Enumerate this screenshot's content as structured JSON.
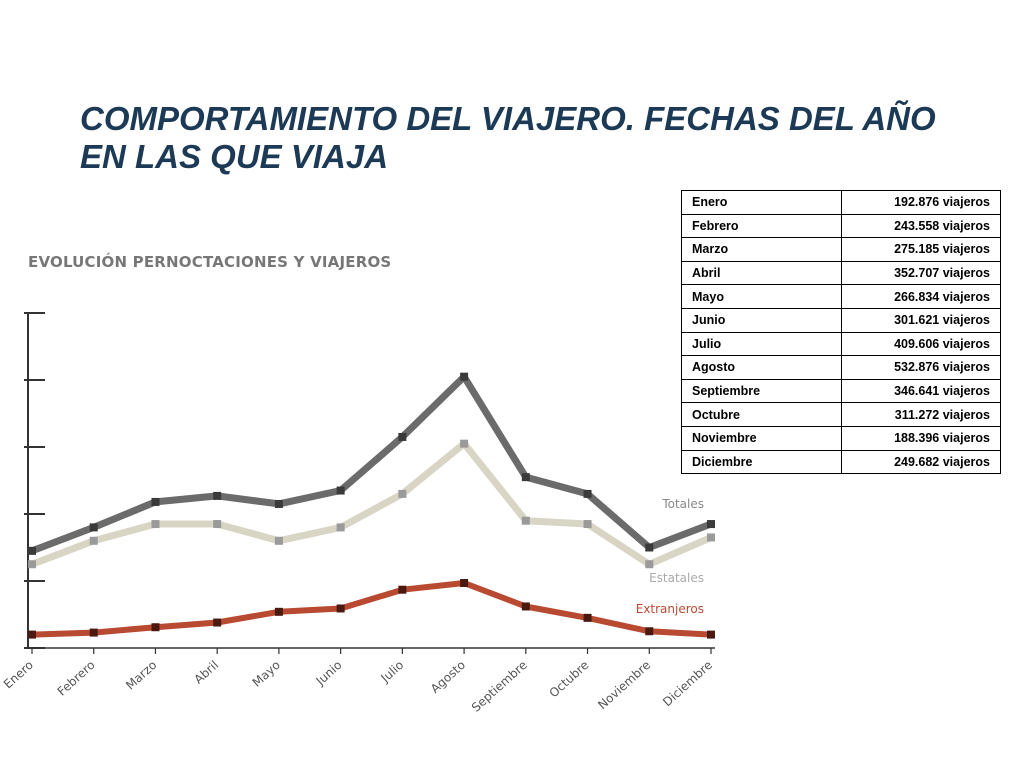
{
  "slide": {
    "title_line1": "COMPORTAMIENTO DEL VIAJERO. FECHAS DEL AÑO",
    "title_line2": "EN LAS QUE VIAJA"
  },
  "table": {
    "rows": [
      {
        "month": "Enero",
        "value": "192.876 viajeros"
      },
      {
        "month": "Febrero",
        "value": "243.558 viajeros"
      },
      {
        "month": "Marzo",
        "value": "275.185 viajeros"
      },
      {
        "month": "Abril",
        "value": "352.707 viajeros"
      },
      {
        "month": "Mayo",
        "value": "266.834 viajeros"
      },
      {
        "month": "Junio",
        "value": "301.621 viajeros"
      },
      {
        "month": "Julio",
        "value": "409.606 viajeros"
      },
      {
        "month": "Agosto",
        "value": "532.876 viajeros"
      },
      {
        "month": "Septiembre",
        "value": "346.641 viajeros"
      },
      {
        "month": "Octubre",
        "value": "311.272 viajeros"
      },
      {
        "month": "Noviembre",
        "value": "188.396 viajeros"
      },
      {
        "month": "Diciembre",
        "value": "249.682 viajeros"
      }
    ]
  },
  "colors": {
    "totales": "#6b6b6b",
    "estatales": "#d8d5c4",
    "extranjeros": "#b84a32",
    "title": "#1c3a56"
  },
  "chart_data": {
    "type": "line",
    "title": "EVOLUCIÓN PERNOCTACIONES Y VIAJEROS",
    "xlabel": "",
    "ylabel": "",
    "ylim": [
      0,
      5
    ],
    "grid": false,
    "categories": [
      "Enero",
      "Febrero",
      "Marzo",
      "Abril",
      "Mayo",
      "Junio",
      "Julio",
      "Agosto",
      "Septiembre",
      "Octubre",
      "Noviembre",
      "Diciembre"
    ],
    "series": [
      {
        "name": "Totales",
        "values": [
          1.45,
          1.8,
          2.18,
          2.27,
          2.15,
          2.35,
          3.15,
          4.05,
          2.55,
          2.3,
          1.5,
          1.85
        ]
      },
      {
        "name": "Estatales",
        "values": [
          1.25,
          1.6,
          1.85,
          1.85,
          1.6,
          1.8,
          2.3,
          3.05,
          1.9,
          1.85,
          1.25,
          1.65
        ]
      },
      {
        "name": "Extranjeros",
        "values": [
          0.2,
          0.23,
          0.31,
          0.38,
          0.54,
          0.59,
          0.87,
          0.97,
          0.62,
          0.45,
          0.25,
          0.2
        ]
      }
    ]
  }
}
